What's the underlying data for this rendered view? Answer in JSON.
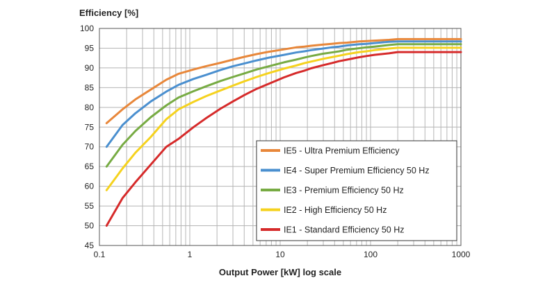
{
  "chart_data": {
    "type": "line",
    "ylabel": "Efficiency  [%]",
    "xlabel": "Output Power [kW]   log scale",
    "xscale": "log",
    "xlim": [
      0.1,
      1000
    ],
    "ylim": [
      45,
      100
    ],
    "xticks": [
      0.1,
      1,
      10,
      100,
      1000
    ],
    "xtick_labels": [
      "0.1",
      "1",
      "10",
      "100",
      "1000"
    ],
    "yticks": [
      45,
      50,
      55,
      60,
      65,
      70,
      75,
      80,
      85,
      90,
      95,
      100
    ],
    "ytick_labels": [
      "45",
      "50",
      "55",
      "60",
      "65",
      "70",
      "75",
      "80",
      "85",
      "90",
      "95",
      "100"
    ],
    "grid": true,
    "legend_position": "lower-right",
    "series": [
      {
        "name": "IE5 - Ultra Premium Efficiency",
        "color": "#e8873a",
        "x": [
          0.12,
          0.18,
          0.25,
          0.37,
          0.55,
          0.75,
          1.1,
          1.5,
          2.2,
          3,
          4,
          5.5,
          7.5,
          11,
          15,
          18.5,
          22,
          30,
          37,
          45,
          55,
          75,
          90,
          110,
          160,
          200,
          1000
        ],
        "y": [
          76,
          79.5,
          82,
          84.5,
          87,
          88.5,
          89.6,
          90.4,
          91.3,
          92.1,
          92.8,
          93.5,
          94.1,
          94.7,
          95.2,
          95.4,
          95.6,
          95.9,
          96.1,
          96.3,
          96.4,
          96.7,
          96.8,
          96.9,
          97.1,
          97.3,
          97.3
        ]
      },
      {
        "name": "IE4 - Super Premium Efficiency 50 Hz",
        "color": "#4a8fcf",
        "x": [
          0.12,
          0.18,
          0.25,
          0.37,
          0.55,
          0.75,
          1.1,
          1.5,
          2.2,
          3,
          4,
          5.5,
          7.5,
          11,
          15,
          18.5,
          22,
          30,
          37,
          45,
          55,
          75,
          90,
          110,
          160,
          200,
          1000
        ],
        "y": [
          70,
          75.5,
          78.5,
          81.5,
          84,
          85.7,
          87.2,
          88.2,
          89.5,
          90.4,
          91.1,
          91.9,
          92.6,
          93.3,
          93.9,
          94.2,
          94.5,
          94.9,
          95.2,
          95.4,
          95.7,
          96,
          96.1,
          96.3,
          96.6,
          96.7,
          96.7
        ]
      },
      {
        "name": "IE3 - Premium Efficiency 50 Hz",
        "color": "#77ab43",
        "x": [
          0.12,
          0.18,
          0.25,
          0.37,
          0.55,
          0.75,
          1.1,
          1.5,
          2.2,
          3,
          4,
          5.5,
          7.5,
          11,
          15,
          18.5,
          22,
          30,
          37,
          45,
          55,
          75,
          90,
          110,
          160,
          200,
          1000
        ],
        "y": [
          65,
          70.5,
          74,
          77.5,
          80.5,
          82.5,
          84.1,
          85.3,
          86.7,
          87.7,
          88.6,
          89.6,
          90.4,
          91.4,
          92.1,
          92.6,
          93,
          93.6,
          93.9,
          94.2,
          94.6,
          95,
          95.2,
          95.4,
          95.8,
          96,
          96
        ]
      },
      {
        "name": "IE2 - High Efficiency 50 Hz",
        "color": "#f5d21e",
        "x": [
          0.12,
          0.18,
          0.25,
          0.37,
          0.55,
          0.75,
          1.1,
          1.5,
          2.2,
          3,
          4,
          5.5,
          7.5,
          11,
          15,
          18.5,
          22,
          30,
          37,
          45,
          55,
          75,
          90,
          110,
          160,
          200,
          1000
        ],
        "y": [
          59,
          64.5,
          68.5,
          72.5,
          77,
          79.5,
          81.4,
          82.8,
          84.3,
          85.5,
          86.6,
          87.7,
          88.7,
          89.8,
          90.6,
          91.2,
          91.6,
          92.3,
          92.7,
          93.1,
          93.5,
          94,
          94.2,
          94.5,
          94.9,
          95.1,
          95.1
        ]
      },
      {
        "name": "IE1 - Standard Efficiency 50 Hz",
        "color": "#d62a2a",
        "x": [
          0.12,
          0.18,
          0.25,
          0.37,
          0.55,
          0.75,
          1.1,
          1.5,
          2.2,
          3,
          4,
          5.5,
          7.5,
          11,
          15,
          18.5,
          22,
          30,
          37,
          45,
          55,
          75,
          90,
          110,
          160,
          200,
          1000
        ],
        "y": [
          50,
          57,
          61,
          65.5,
          70,
          72,
          75,
          77.2,
          79.7,
          81.5,
          83.1,
          84.7,
          86,
          87.6,
          88.7,
          89.3,
          89.9,
          90.7,
          91.2,
          91.7,
          92.1,
          92.7,
          93,
          93.3,
          93.7,
          94,
          94
        ]
      }
    ]
  }
}
